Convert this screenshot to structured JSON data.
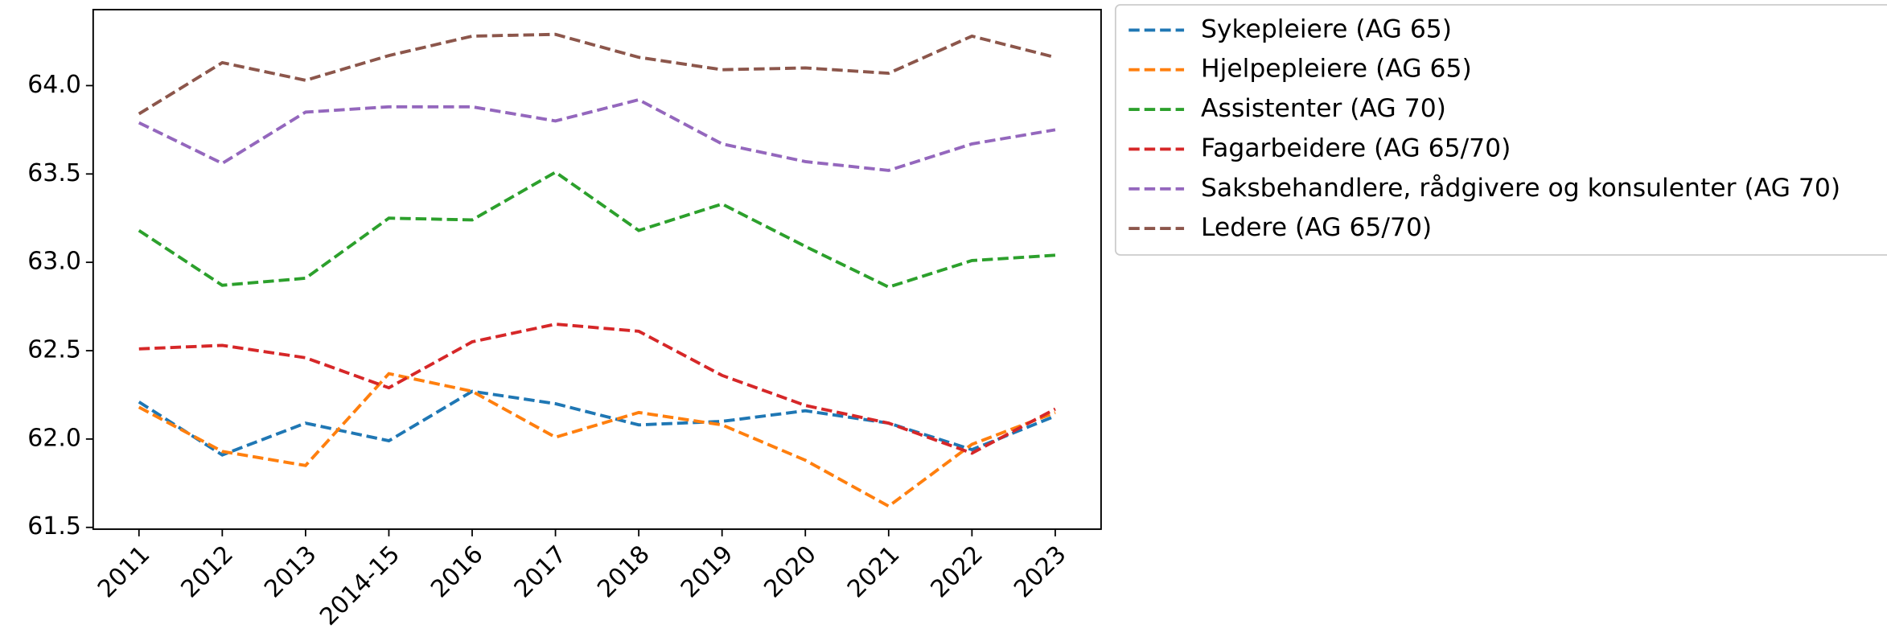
{
  "chart_data": {
    "type": "line",
    "categories": [
      "2011",
      "2012",
      "2013",
      "2014-15",
      "2016",
      "2017",
      "2018",
      "2019",
      "2020",
      "2021",
      "2022",
      "2023"
    ],
    "series": [
      {
        "name": "Sykepleiere (AG 65)",
        "color": "#1f77b4",
        "values": [
          62.21,
          61.91,
          62.09,
          61.99,
          62.27,
          62.2,
          62.08,
          62.1,
          62.16,
          62.09,
          61.94,
          62.13
        ]
      },
      {
        "name": "Hjelpepleiere (AG 65)",
        "color": "#ff7f0e",
        "values": [
          62.18,
          61.93,
          61.85,
          62.37,
          62.27,
          62.01,
          62.15,
          62.08,
          61.88,
          61.62,
          61.97,
          62.15
        ]
      },
      {
        "name": "Assistenter (AG 70)",
        "color": "#2ca02c",
        "values": [
          63.18,
          62.87,
          62.91,
          63.25,
          63.24,
          63.51,
          63.18,
          63.33,
          63.09,
          62.86,
          63.01,
          63.04
        ]
      },
      {
        "name": "Fagarbeidere (AG 65/70)",
        "color": "#d62728",
        "values": [
          62.51,
          62.53,
          62.46,
          62.29,
          62.55,
          62.65,
          62.61,
          62.36,
          62.19,
          62.09,
          61.92,
          62.17
        ]
      },
      {
        "name": "Saksbehandlere, rådgivere og konsulenter (AG 70)",
        "color": "#9467bd",
        "values": [
          63.79,
          63.56,
          63.85,
          63.88,
          63.88,
          63.8,
          63.92,
          63.67,
          63.57,
          63.52,
          63.67,
          63.75
        ]
      },
      {
        "name": "Ledere (AG 65/70)",
        "color": "#8c564b",
        "values": [
          63.84,
          64.13,
          64.03,
          64.17,
          64.28,
          64.29,
          64.16,
          64.09,
          64.1,
          64.07,
          64.28,
          64.16
        ]
      }
    ],
    "ylim": [
      61.49,
      64.43
    ],
    "yticks": [
      {
        "value": 61.5,
        "label": "61.5"
      },
      {
        "value": 62,
        "label": "62.0"
      },
      {
        "value": 62.5,
        "label": "62.5"
      },
      {
        "value": 63,
        "label": "63.0"
      },
      {
        "value": 63.5,
        "label": "63.5"
      },
      {
        "value": 64,
        "label": "64.0"
      }
    ],
    "line_style": "dashed",
    "grid": false,
    "legend": "outside upper right"
  }
}
